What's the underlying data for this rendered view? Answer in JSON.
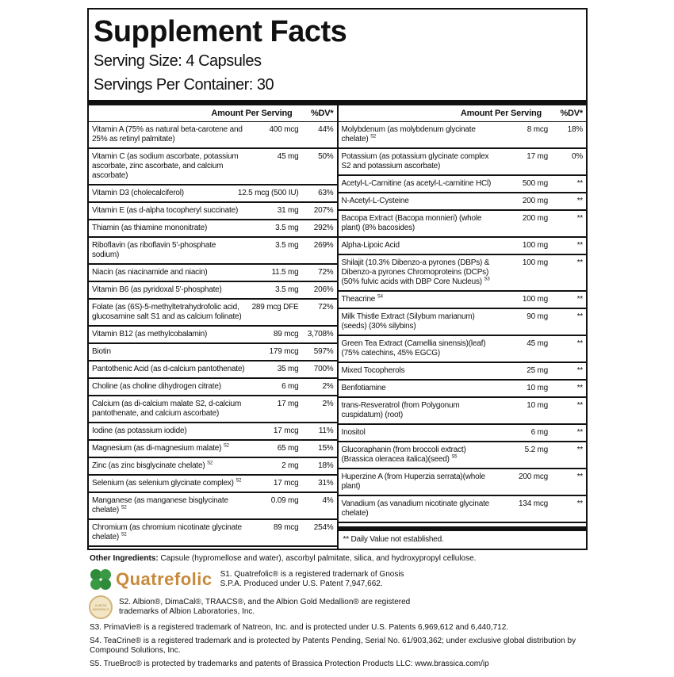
{
  "title": "Supplement Facts",
  "serving_size": "Serving Size: 4 Capsules",
  "servings_per_container": "Servings Per Container: 30",
  "header": {
    "amount": "Amount Per Serving",
    "dv": "%DV*"
  },
  "left_rows": [
    {
      "name": "Vitamin A (75% as natural beta-carotene and 25% as retinyl palmitate)",
      "sup": "",
      "amount": "400 mcg",
      "dv": "44%"
    },
    {
      "name": "Vitamin C (as sodium ascorbate, potassium ascorbate, zinc ascorbate, and calcium ascorbate)",
      "sup": "",
      "amount": "45 mg",
      "dv": "50%"
    },
    {
      "name": "Vitamin D3 (cholecalciferol)",
      "sup": "",
      "amount": "12.5 mcg (500 IU)",
      "dv": "63%"
    },
    {
      "name": "Vitamin E (as d-alpha tocopheryl succinate)",
      "sup": "",
      "amount": "31 mg",
      "dv": "207%"
    },
    {
      "name": "Thiamin (as thiamine mononitrate)",
      "sup": "",
      "amount": "3.5 mg",
      "dv": "292%"
    },
    {
      "name": "Riboflavin (as riboflavin 5'-phosphate sodium)",
      "sup": "",
      "amount": "3.5 mg",
      "dv": "269%"
    },
    {
      "name": "Niacin (as niacinamide and niacin)",
      "sup": "",
      "amount": "11.5 mg",
      "dv": "72%"
    },
    {
      "name": "Vitamin B6 (as pyridoxal 5'-phosphate)",
      "sup": "",
      "amount": "3.5 mg",
      "dv": "206%"
    },
    {
      "name": "Folate (as (6S)-5-methyltetrahydrofolic acid, glucosamine salt S1 and as calcium folinate)",
      "sup": "",
      "amount": "289 mcg DFE",
      "dv": "72%"
    },
    {
      "name": "Vitamin B12 (as methylcobalamin)",
      "sup": "",
      "amount": "89 mcg",
      "dv": "3,708%"
    },
    {
      "name": "Biotin",
      "sup": "",
      "amount": "179 mcg",
      "dv": "597%"
    },
    {
      "name": "Pantothenic Acid (as d-calcium pantothenate)",
      "sup": "",
      "amount": "35 mg",
      "dv": "700%"
    },
    {
      "name": "Choline (as choline dihydrogen citrate)",
      "sup": "",
      "amount": "6 mg",
      "dv": "2%"
    },
    {
      "name": "Calcium (as di-calcium malate S2, d-calcium pantothenate, and calcium ascorbate)",
      "sup": "",
      "amount": "17 mg",
      "dv": "2%"
    },
    {
      "name": "Iodine (as potassium iodide)",
      "sup": "",
      "amount": "17 mcg",
      "dv": "11%"
    },
    {
      "name": "Magnesium (as di-magnesium malate)",
      "sup": "S2",
      "amount": "65 mg",
      "dv": "15%"
    },
    {
      "name": "Zinc (as zinc bisglycinate chelate)",
      "sup": "S2",
      "amount": "2 mg",
      "dv": "18%"
    },
    {
      "name": "Selenium (as selenium glycinate complex)",
      "sup": "S2",
      "amount": "17 mcg",
      "dv": "31%"
    },
    {
      "name": "Manganese (as manganese bisglycinate chelate)",
      "sup": "S2",
      "amount": "0.09 mg",
      "dv": "4%"
    },
    {
      "name": "Chromium (as chromium nicotinate glycinate chelate)",
      "sup": "S2",
      "amount": "89 mcg",
      "dv": "254%"
    }
  ],
  "right_rows": [
    {
      "name": "Molybdenum (as molybdenum glycinate chelate)",
      "sup": "S2",
      "amount": "8 mcg",
      "dv": "18%"
    },
    {
      "name": "Potassium (as potassium glycinate complex S2 and potassium ascorbate)",
      "sup": "",
      "amount": "17 mg",
      "dv": "0%"
    },
    {
      "name": "Acetyl-L-Carnitine (as acetyl-L-carnitine HCl)",
      "sup": "",
      "amount": "500 mg",
      "dv": "**"
    },
    {
      "name": "N-Acetyl-L-Cysteine",
      "sup": "",
      "amount": "200 mg",
      "dv": "**"
    },
    {
      "name": "Bacopa Extract (Bacopa monnieri) (whole plant) (8% bacosides)",
      "sup": "",
      "amount": "200 mg",
      "dv": "**"
    },
    {
      "name": "Alpha-Lipoic Acid",
      "sup": "",
      "amount": "100 mg",
      "dv": "**"
    },
    {
      "name": "Shilajit (10.3% Dibenzo-a pyrones (DBPs) & Dibenzo-a pyrones Chromoproteins (DCPs) (50% fulvic acids with DBP Core Nucleus)",
      "sup": "S3",
      "amount": "100 mg",
      "dv": "**"
    },
    {
      "name": "Theacrine",
      "sup": "S4",
      "amount": "100 mg",
      "dv": "**"
    },
    {
      "name": "Milk Thistle Extract (Silybum marianum)(seeds) (30% silybins)",
      "sup": "",
      "amount": "90 mg",
      "dv": "**"
    },
    {
      "name": "Green Tea Extract (Camellia sinensis)(leaf)(75% catechins, 45% EGCG)",
      "sup": "",
      "amount": "45 mg",
      "dv": "**"
    },
    {
      "name": "Mixed Tocopherols",
      "sup": "",
      "amount": "25 mg",
      "dv": "**"
    },
    {
      "name": "Benfotiamine",
      "sup": "",
      "amount": "10 mg",
      "dv": "**"
    },
    {
      "name": "trans-Resveratrol (from Polygonum cuspidatum) (root)",
      "sup": "",
      "amount": "10 mg",
      "dv": "**"
    },
    {
      "name": "Inositol",
      "sup": "",
      "amount": "6 mg",
      "dv": "**"
    },
    {
      "name": "Glucoraphanin (from broccoli extract)(Brassica oleracea italica)(seed)",
      "sup": "S5",
      "amount": "5.2 mg",
      "dv": "**"
    },
    {
      "name": "Huperzine A (from Huperzia serrata)(whole plant)",
      "sup": "",
      "amount": "200 mcg",
      "dv": "**"
    },
    {
      "name": "Vanadium (as vanadium nicotinate glycinate chelate)",
      "sup": "",
      "amount": "134 mcg",
      "dv": "**"
    }
  ],
  "dv_note": "** Daily Value not established.",
  "other_ingredients": {
    "label": "Other Ingredients:",
    "text": " Capsule (hypromellose and water), ascorbyl palmitate, silica, and hydroxypropyl cellulose."
  },
  "logos": {
    "quatrefolic": "Quatrefolic",
    "albion": "ALBION MINERALS"
  },
  "colors": {
    "clover": "#2e8b3a",
    "quatrefolic_text": "#c8893a",
    "albion_gold": "#d2b47a"
  },
  "footnotes": {
    "s1": "S1. Quatrefolic® is a registered trademark of Gnosis S.P.A. Produced under U.S. Patent 7,947,662.",
    "s2": "S2. Albion®, DimaCal®, TRAACS®, and the Albion Gold Medallion® are registered trademarks of Albion Laboratories, Inc.",
    "s3": "S3. PrimaVie® is a registered trademark of Natreon, Inc. and is protected under U.S. Patents 6,969,612 and 6,440,712.",
    "s4": "S4. TeaCrine® is a registered trademark and is protected by Patents Pending, Serial No. 61/903,362; under exclusive global distribution by Compound Solutions, Inc.",
    "s5": "S5. TrueBroc® is protected by trademarks and patents of Brassica Protection Products LLC: www.brassica.com/ip"
  }
}
